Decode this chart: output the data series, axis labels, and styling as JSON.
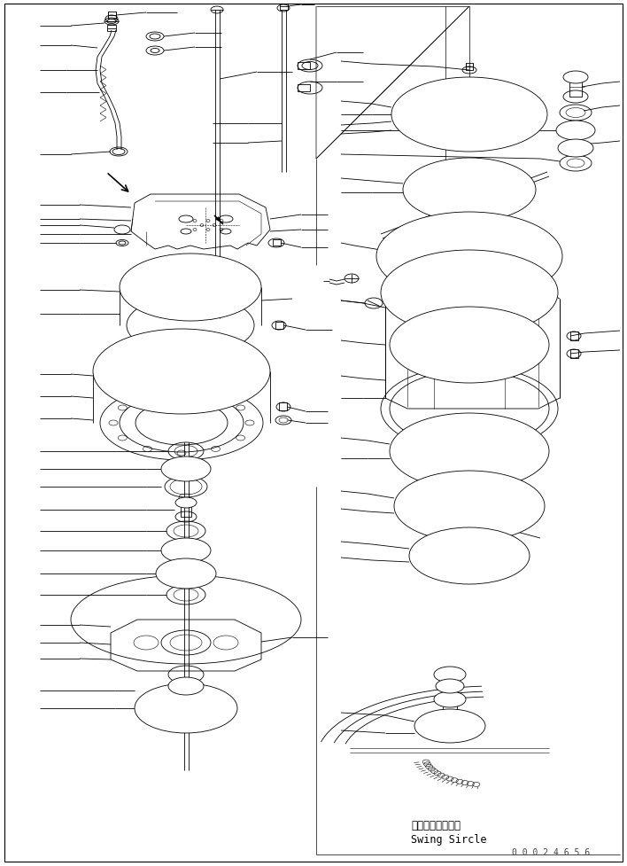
{
  "bg_color": "#ffffff",
  "line_color": "#000000",
  "lw": 0.6,
  "tlw": 0.4,
  "fig_width": 7.08,
  "fig_height": 9.78,
  "dpi": 100,
  "bottom_text_japanese": "スイングサークル",
  "bottom_text_english": "Swing Sircle",
  "part_number": "0 0 0 2 4 6 5 6"
}
